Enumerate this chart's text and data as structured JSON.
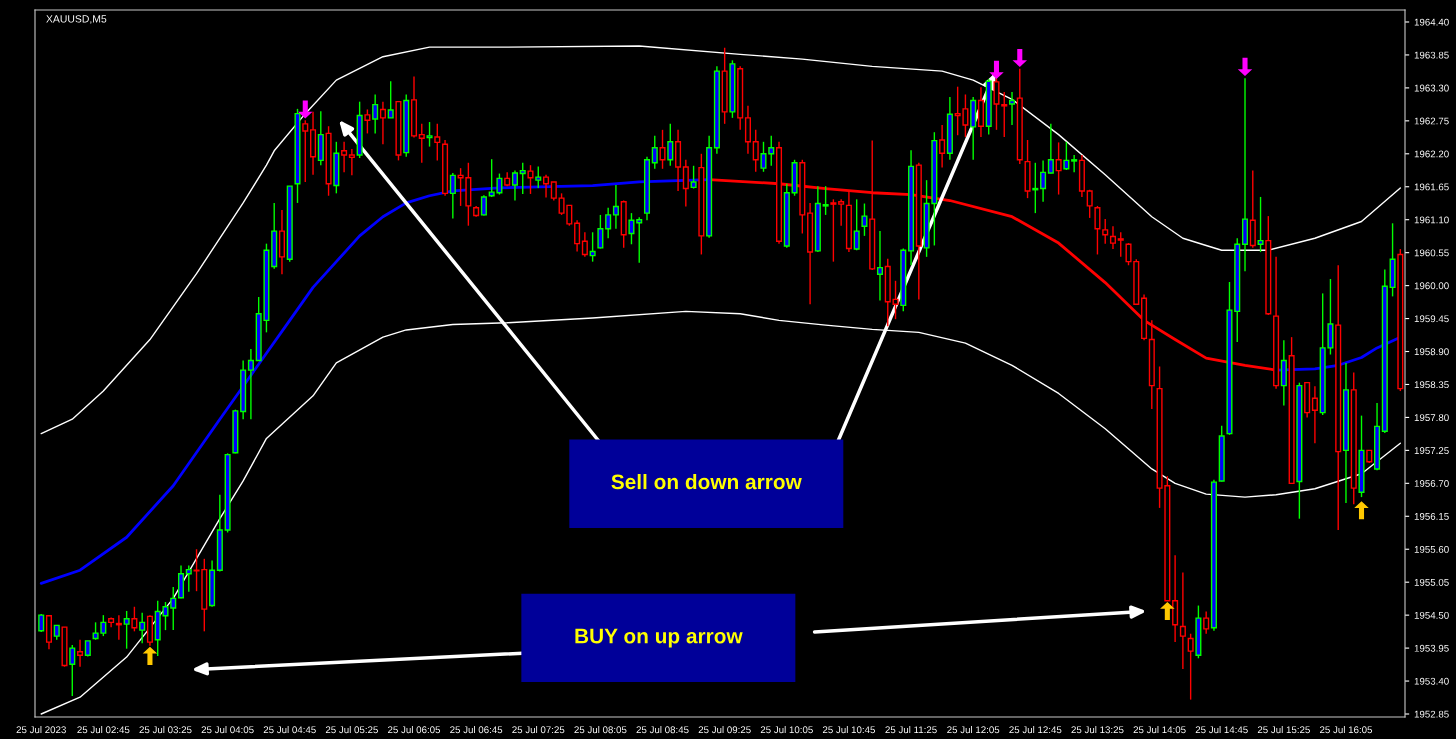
{
  "chart_data": {
    "type": "candlestick",
    "title": "XAUUSD,M5",
    "x": [
      "2023-07-25T02:05",
      "2023-07-25T02:10",
      "2023-07-25T02:15",
      "2023-07-25T02:20",
      "2023-07-25T02:25",
      "2023-07-25T02:30",
      "2023-07-25T02:35",
      "2023-07-25T02:40",
      "2023-07-25T02:45",
      "2023-07-25T02:50",
      "2023-07-25T02:55",
      "2023-07-25T03:00",
      "2023-07-25T03:05",
      "2023-07-25T03:10",
      "2023-07-25T03:15",
      "2023-07-25T03:20",
      "2023-07-25T03:25",
      "2023-07-25T03:30",
      "2023-07-25T03:35",
      "2023-07-25T03:40",
      "2023-07-25T03:45",
      "2023-07-25T03:50",
      "2023-07-25T03:55",
      "2023-07-25T04:00",
      "2023-07-25T04:05",
      "2023-07-25T04:10",
      "2023-07-25T04:15",
      "2023-07-25T04:20",
      "2023-07-25T04:25",
      "2023-07-25T04:30",
      "2023-07-25T04:35",
      "2023-07-25T04:40",
      "2023-07-25T04:45",
      "2023-07-25T04:50",
      "2023-07-25T04:55",
      "2023-07-25T05:00",
      "2023-07-25T05:05",
      "2023-07-25T05:10",
      "2023-07-25T05:15",
      "2023-07-25T05:20",
      "2023-07-25T05:25",
      "2023-07-25T05:30",
      "2023-07-25T05:35",
      "2023-07-25T05:40",
      "2023-07-25T05:45",
      "2023-07-25T05:50",
      "2023-07-25T05:55",
      "2023-07-25T06:00",
      "2023-07-25T06:05",
      "2023-07-25T06:10",
      "2023-07-25T06:15",
      "2023-07-25T06:20",
      "2023-07-25T06:25",
      "2023-07-25T06:30",
      "2023-07-25T06:35",
      "2023-07-25T06:40",
      "2023-07-25T06:45",
      "2023-07-25T06:50",
      "2023-07-25T06:55",
      "2023-07-25T07:00",
      "2023-07-25T07:05",
      "2023-07-25T07:10",
      "2023-07-25T07:15",
      "2023-07-25T07:20",
      "2023-07-25T07:25",
      "2023-07-25T07:30",
      "2023-07-25T07:35",
      "2023-07-25T07:40",
      "2023-07-25T07:45",
      "2023-07-25T07:50",
      "2023-07-25T07:55",
      "2023-07-25T08:00",
      "2023-07-25T08:05",
      "2023-07-25T08:10",
      "2023-07-25T08:15",
      "2023-07-25T08:20",
      "2023-07-25T08:25",
      "2023-07-25T08:30",
      "2023-07-25T08:35",
      "2023-07-25T08:40",
      "2023-07-25T08:45",
      "2023-07-25T08:50",
      "2023-07-25T08:55",
      "2023-07-25T09:00",
      "2023-07-25T09:05",
      "2023-07-25T09:10",
      "2023-07-25T09:15",
      "2023-07-25T09:20",
      "2023-07-25T09:25",
      "2023-07-25T09:30",
      "2023-07-25T09:35",
      "2023-07-25T09:40",
      "2023-07-25T09:45",
      "2023-07-25T09:50",
      "2023-07-25T09:55",
      "2023-07-25T10:00",
      "2023-07-25T10:05",
      "2023-07-25T10:10",
      "2023-07-25T10:15",
      "2023-07-25T10:20",
      "2023-07-25T10:25",
      "2023-07-25T10:30",
      "2023-07-25T10:35",
      "2023-07-25T10:40",
      "2023-07-25T10:45",
      "2023-07-25T10:50",
      "2023-07-25T10:55",
      "2023-07-25T11:00",
      "2023-07-25T11:05",
      "2023-07-25T11:10",
      "2023-07-25T11:15",
      "2023-07-25T11:20",
      "2023-07-25T11:25",
      "2023-07-25T11:30",
      "2023-07-25T11:35",
      "2023-07-25T11:40",
      "2023-07-25T11:45",
      "2023-07-25T11:50",
      "2023-07-25T11:55",
      "2023-07-25T12:00",
      "2023-07-25T12:05",
      "2023-07-25T12:10",
      "2023-07-25T12:15",
      "2023-07-25T12:20",
      "2023-07-25T12:25",
      "2023-07-25T12:30",
      "2023-07-25T12:35",
      "2023-07-25T12:40",
      "2023-07-25T12:45",
      "2023-07-25T12:50",
      "2023-07-25T12:55",
      "2023-07-25T13:00",
      "2023-07-25T13:05",
      "2023-07-25T13:10",
      "2023-07-25T13:15",
      "2023-07-25T13:20",
      "2023-07-25T13:25",
      "2023-07-25T13:30",
      "2023-07-25T13:35",
      "2023-07-25T13:40",
      "2023-07-25T13:45",
      "2023-07-25T13:50",
      "2023-07-25T13:55",
      "2023-07-25T14:00",
      "2023-07-25T14:05",
      "2023-07-25T14:10",
      "2023-07-25T14:15",
      "2023-07-25T14:20",
      "2023-07-25T14:25",
      "2023-07-25T14:30",
      "2023-07-25T14:35",
      "2023-07-25T14:40",
      "2023-07-25T14:45",
      "2023-07-25T14:50",
      "2023-07-25T14:55",
      "2023-07-25T15:00",
      "2023-07-25T15:05",
      "2023-07-25T15:10",
      "2023-07-25T15:15",
      "2023-07-25T15:20",
      "2023-07-25T15:25",
      "2023-07-25T15:30",
      "2023-07-25T15:35",
      "2023-07-25T15:40",
      "2023-07-25T15:45",
      "2023-07-25T15:50",
      "2023-07-25T15:55",
      "2023-07-25T16:00",
      "2023-07-25T16:05",
      "2023-07-25T16:10",
      "2023-07-25T16:15",
      "2023-07-25T16:20",
      "2023-07-25T16:25",
      "2023-07-25T16:30",
      "2023-07-25T16:35",
      "2023-07-25T16:40"
    ],
    "ohlc": [
      [
        1954.24,
        1954.52,
        1954.22,
        1954.5
      ],
      [
        1954.49,
        1954.5,
        1953.93,
        1954.05
      ],
      [
        1954.15,
        1954.33,
        1954.09,
        1954.33
      ],
      [
        1954.3,
        1954.3,
        1953.64,
        1953.66
      ],
      [
        1953.68,
        1954.0,
        1953.15,
        1953.95
      ],
      [
        1953.89,
        1954.09,
        1953.64,
        1953.83
      ],
      [
        1953.83,
        1954.07,
        1953.81,
        1954.07
      ],
      [
        1954.11,
        1954.38,
        1954.09,
        1954.2
      ],
      [
        1954.2,
        1954.5,
        1954.15,
        1954.38
      ],
      [
        1954.44,
        1954.46,
        1954.3,
        1954.38
      ],
      [
        1954.36,
        1954.5,
        1954.09,
        1954.34
      ],
      [
        1954.35,
        1954.57,
        1953.94,
        1954.44
      ],
      [
        1954.44,
        1954.64,
        1954.23,
        1954.29
      ],
      [
        1954.25,
        1954.54,
        1954.03,
        1954.38
      ],
      [
        1954.48,
        1954.5,
        1953.99,
        1954.05
      ],
      [
        1954.09,
        1954.74,
        1953.82,
        1954.56
      ],
      [
        1954.49,
        1954.72,
        1954.25,
        1954.64
      ],
      [
        1954.62,
        1954.97,
        1954.25,
        1954.78
      ],
      [
        1954.79,
        1955.33,
        1954.78,
        1955.19
      ],
      [
        1955.19,
        1955.33,
        1954.89,
        1955.26
      ],
      [
        1955.25,
        1955.6,
        1954.9,
        1955.24
      ],
      [
        1955.26,
        1955.44,
        1954.23,
        1954.6
      ],
      [
        1954.66,
        1955.41,
        1954.64,
        1955.25
      ],
      [
        1955.25,
        1956.51,
        1955.23,
        1955.92
      ],
      [
        1955.92,
        1957.2,
        1955.88,
        1957.18
      ],
      [
        1957.21,
        1957.93,
        1957.2,
        1957.91
      ],
      [
        1957.9,
        1958.75,
        1957.77,
        1958.59
      ],
      [
        1958.59,
        1958.94,
        1957.77,
        1958.75
      ],
      [
        1958.75,
        1959.81,
        1958.75,
        1959.53
      ],
      [
        1959.42,
        1960.7,
        1959.22,
        1960.59
      ],
      [
        1960.32,
        1961.38,
        1960.28,
        1960.91
      ],
      [
        1960.91,
        1961.26,
        1960.19,
        1960.48
      ],
      [
        1960.44,
        1961.66,
        1960.4,
        1961.66
      ],
      [
        1961.7,
        1962.95,
        1961.38,
        1962.87
      ],
      [
        1962.7,
        1962.76,
        1961.73,
        1962.58
      ],
      [
        1962.6,
        1962.9,
        1961.85,
        1962.15
      ],
      [
        1962.09,
        1962.91,
        1962.01,
        1962.52
      ],
      [
        1962.54,
        1962.66,
        1961.5,
        1961.7
      ],
      [
        1961.67,
        1962.4,
        1961.54,
        1962.21
      ],
      [
        1962.25,
        1962.4,
        1961.89,
        1962.18
      ],
      [
        1962.18,
        1962.28,
        1961.84,
        1962.14
      ],
      [
        1962.18,
        1963.07,
        1962.13,
        1962.84
      ],
      [
        1962.85,
        1962.94,
        1962.54,
        1962.76
      ],
      [
        1962.78,
        1963.19,
        1962.54,
        1963.02
      ],
      [
        1962.94,
        1963.07,
        1962.36,
        1962.8
      ],
      [
        1962.8,
        1963.41,
        1962.8,
        1962.93
      ],
      [
        1963.07,
        1963.07,
        1962.09,
        1962.18
      ],
      [
        1962.22,
        1963.19,
        1962.15,
        1963.09
      ],
      [
        1963.1,
        1963.49,
        1962.47,
        1962.5
      ],
      [
        1962.52,
        1962.7,
        1962.05,
        1962.46
      ],
      [
        1962.47,
        1962.73,
        1962.32,
        1962.5
      ],
      [
        1962.48,
        1962.7,
        1962.09,
        1962.39
      ],
      [
        1962.36,
        1962.43,
        1961.5,
        1961.54
      ],
      [
        1961.54,
        1961.88,
        1961.12,
        1961.84
      ],
      [
        1961.84,
        1961.96,
        1961.33,
        1961.8
      ],
      [
        1961.8,
        1962.05,
        1961.0,
        1961.33
      ],
      [
        1961.3,
        1961.33,
        1961.15,
        1961.17
      ],
      [
        1961.18,
        1961.51,
        1961.17,
        1961.48
      ],
      [
        1961.5,
        1962.11,
        1961.48,
        1961.56
      ],
      [
        1961.55,
        1961.87,
        1961.52,
        1961.79
      ],
      [
        1961.79,
        1961.89,
        1961.66,
        1961.68
      ],
      [
        1961.68,
        1961.92,
        1961.42,
        1961.88
      ],
      [
        1961.87,
        1962.05,
        1961.53,
        1961.92
      ],
      [
        1961.91,
        1962.01,
        1961.53,
        1961.8
      ],
      [
        1961.76,
        1961.99,
        1961.63,
        1961.81
      ],
      [
        1961.81,
        1961.85,
        1961.47,
        1961.7
      ],
      [
        1961.73,
        1961.73,
        1961.42,
        1961.46
      ],
      [
        1961.46,
        1961.54,
        1961.18,
        1961.21
      ],
      [
        1961.34,
        1961.34,
        1961.0,
        1961.03
      ],
      [
        1961.04,
        1961.09,
        1960.57,
        1960.7
      ],
      [
        1960.74,
        1960.89,
        1960.48,
        1960.52
      ],
      [
        1960.5,
        1960.89,
        1960.4,
        1960.57
      ],
      [
        1960.63,
        1961.18,
        1960.62,
        1960.95
      ],
      [
        1960.95,
        1961.3,
        1960.79,
        1961.18
      ],
      [
        1961.18,
        1961.68,
        1960.95,
        1961.32
      ],
      [
        1961.4,
        1961.42,
        1960.63,
        1960.85
      ],
      [
        1960.87,
        1961.21,
        1960.69,
        1961.09
      ],
      [
        1961.05,
        1961.14,
        1960.38,
        1961.1
      ],
      [
        1961.21,
        1962.15,
        1961.09,
        1962.1
      ],
      [
        1962.05,
        1962.5,
        1961.95,
        1962.3
      ],
      [
        1962.3,
        1962.6,
        1961.95,
        1962.1
      ],
      [
        1962.1,
        1962.7,
        1962.0,
        1962.4
      ],
      [
        1962.4,
        1962.6,
        1961.58,
        1961.98
      ],
      [
        1961.98,
        1962.1,
        1961.32,
        1961.62
      ],
      [
        1961.64,
        1962.0,
        1961.62,
        1961.73
      ],
      [
        1961.97,
        1962.2,
        1960.52,
        1960.83
      ],
      [
        1960.83,
        1962.5,
        1960.8,
        1962.3
      ],
      [
        1962.3,
        1963.66,
        1962.2,
        1963.58
      ],
      [
        1963.58,
        1963.97,
        1962.7,
        1962.9
      ],
      [
        1962.9,
        1963.76,
        1962.8,
        1963.7
      ],
      [
        1963.62,
        1963.66,
        1962.6,
        1962.8
      ],
      [
        1962.8,
        1963.0,
        1962.2,
        1962.4
      ],
      [
        1962.4,
        1962.6,
        1961.9,
        1962.1
      ],
      [
        1961.96,
        1962.4,
        1961.9,
        1962.2
      ],
      [
        1962.2,
        1962.5,
        1962.0,
        1962.3
      ],
      [
        1962.3,
        1962.4,
        1960.7,
        1960.74
      ],
      [
        1960.66,
        1961.7,
        1960.63,
        1961.55
      ],
      [
        1961.55,
        1962.1,
        1961.5,
        1962.05
      ],
      [
        1962.05,
        1962.1,
        1960.87,
        1961.18
      ],
      [
        1961.21,
        1961.38,
        1959.69,
        1960.56
      ],
      [
        1960.58,
        1961.66,
        1960.56,
        1961.37
      ],
      [
        1961.33,
        1961.66,
        1961.18,
        1961.35
      ],
      [
        1961.38,
        1961.44,
        1960.4,
        1961.36
      ],
      [
        1961.4,
        1961.44,
        1961.0,
        1961.36
      ],
      [
        1961.34,
        1961.58,
        1960.56,
        1960.62
      ],
      [
        1960.61,
        1961.44,
        1960.59,
        1960.91
      ],
      [
        1960.99,
        1961.37,
        1960.83,
        1961.16
      ],
      [
        1961.11,
        1962.42,
        1960.26,
        1960.28
      ],
      [
        1960.19,
        1960.91,
        1959.75,
        1960.3
      ],
      [
        1960.32,
        1960.45,
        1959.32,
        1959.73
      ],
      [
        1959.77,
        1960.08,
        1959.44,
        1959.69
      ],
      [
        1959.67,
        1960.62,
        1959.57,
        1960.59
      ],
      [
        1960.58,
        1962.26,
        1960.34,
        1961.99
      ],
      [
        1962.01,
        1962.05,
        1959.77,
        1960.66
      ],
      [
        1960.63,
        1961.76,
        1960.48,
        1961.37
      ],
      [
        1961.37,
        1962.56,
        1960.67,
        1962.42
      ],
      [
        1962.43,
        1962.68,
        1961.97,
        1962.21
      ],
      [
        1962.21,
        1963.15,
        1962.1,
        1962.86
      ],
      [
        1962.87,
        1963.32,
        1962.51,
        1962.84
      ],
      [
        1962.95,
        1963.19,
        1962.48,
        1962.68
      ],
      [
        1962.65,
        1963.15,
        1962.1,
        1963.09
      ],
      [
        1963.09,
        1963.31,
        1962.48,
        1962.66
      ],
      [
        1962.66,
        1963.45,
        1962.52,
        1963.41
      ],
      [
        1963.4,
        1963.46,
        1962.6,
        1963.03
      ],
      [
        1963.02,
        1963.23,
        1962.48,
        1963.0
      ],
      [
        1963.03,
        1963.23,
        1962.68,
        1963.09
      ],
      [
        1963.13,
        1963.62,
        1962.03,
        1962.1
      ],
      [
        1962.07,
        1962.43,
        1961.46,
        1961.58
      ],
      [
        1961.6,
        1962.05,
        1961.21,
        1961.62
      ],
      [
        1961.62,
        1962.09,
        1961.4,
        1961.89
      ],
      [
        1961.88,
        1962.7,
        1961.87,
        1962.1
      ],
      [
        1962.1,
        1962.39,
        1961.52,
        1961.92
      ],
      [
        1961.95,
        1962.4,
        1961.93,
        1962.09
      ],
      [
        1962.08,
        1962.18,
        1961.89,
        1962.1
      ],
      [
        1962.09,
        1962.18,
        1961.48,
        1961.58
      ],
      [
        1961.58,
        1961.6,
        1961.13,
        1961.33
      ],
      [
        1961.3,
        1961.33,
        1960.52,
        1960.95
      ],
      [
        1960.93,
        1961.11,
        1960.7,
        1960.85
      ],
      [
        1960.82,
        1960.99,
        1960.61,
        1960.71
      ],
      [
        1960.78,
        1960.89,
        1960.48,
        1960.76
      ],
      [
        1960.69,
        1960.71,
        1960.34,
        1960.4
      ],
      [
        1960.4,
        1960.44,
        1959.69,
        1959.69
      ],
      [
        1959.79,
        1959.85,
        1959.09,
        1959.12
      ],
      [
        1959.1,
        1959.42,
        1957.94,
        1958.33
      ],
      [
        1958.28,
        1958.65,
        1956.29,
        1956.62
      ],
      [
        1956.66,
        1956.82,
        1954.74,
        1954.74
      ],
      [
        1954.74,
        1955.5,
        1954.05,
        1954.34
      ],
      [
        1954.31,
        1955.21,
        1953.6,
        1954.15
      ],
      [
        1954.11,
        1954.19,
        1953.09,
        1953.9
      ],
      [
        1953.83,
        1954.66,
        1953.78,
        1954.45
      ],
      [
        1954.45,
        1954.56,
        1954.19,
        1954.27
      ],
      [
        1954.29,
        1956.76,
        1954.24,
        1956.72
      ],
      [
        1956.74,
        1957.66,
        1956.73,
        1957.49
      ],
      [
        1957.53,
        1960.06,
        1957.51,
        1959.59
      ],
      [
        1959.57,
        1960.79,
        1959.06,
        1960.69
      ],
      [
        1960.69,
        1963.46,
        1960.24,
        1961.11
      ],
      [
        1961.09,
        1961.92,
        1960.63,
        1960.67
      ],
      [
        1960.69,
        1961.48,
        1960.56,
        1960.75
      ],
      [
        1960.75,
        1961.16,
        1959.51,
        1959.53
      ],
      [
        1959.49,
        1960.48,
        1958.28,
        1958.33
      ],
      [
        1958.33,
        1959.09,
        1958.0,
        1958.75
      ],
      [
        1958.83,
        1959.14,
        1956.7,
        1956.7
      ],
      [
        1956.73,
        1958.38,
        1956.11,
        1958.33
      ],
      [
        1958.38,
        1958.38,
        1957.8,
        1957.88
      ],
      [
        1958.12,
        1958.32,
        1957.37,
        1957.92
      ],
      [
        1957.88,
        1959.87,
        1957.84,
        1958.96
      ],
      [
        1958.96,
        1960.11,
        1958.85,
        1959.36
      ],
      [
        1959.34,
        1960.34,
        1955.92,
        1957.23
      ],
      [
        1957.25,
        1958.71,
        1956.37,
        1958.26
      ],
      [
        1958.26,
        1958.55,
        1956.35,
        1956.62
      ],
      [
        1956.55,
        1957.83,
        1956.47,
        1957.25
      ],
      [
        1957.25,
        1957.25,
        1957.04,
        1957.06
      ],
      [
        1956.94,
        1958.04,
        1956.92,
        1957.65
      ],
      [
        1957.57,
        1960.27,
        1957.54,
        1959.99
      ],
      [
        1959.97,
        1961.04,
        1959.82,
        1960.44
      ],
      [
        1960.52,
        1960.61,
        1958.24,
        1958.28
      ]
    ],
    "series": [
      {
        "type": "line",
        "color": "#ffffff",
        "x": [
          "2023-07-25T02:05",
          "2023-07-25T02:25",
          "2023-07-25T02:45",
          "2023-07-25T03:15",
          "2023-07-25T03:45",
          "2023-07-25T04:15",
          "2023-07-25T04:30",
          "2023-07-25T04:35",
          "2023-07-25T04:55",
          "2023-07-25T05:15",
          "2023-07-25T05:45",
          "2023-07-25T06:15",
          "2023-07-25T07:05",
          "2023-07-25T08:30",
          "2023-07-25T09:35",
          "2023-07-25T10:15",
          "2023-07-25T11:00",
          "2023-07-25T11:45",
          "2023-07-25T12:05",
          "2023-07-25T12:30",
          "2023-07-25T13:00",
          "2023-07-25T13:30",
          "2023-07-25T14:00",
          "2023-07-25T14:20",
          "2023-07-25T14:35",
          "2023-07-25T14:45",
          "2023-07-25T15:15",
          "2023-07-25T15:45",
          "2023-07-25T16:15",
          "2023-07-25T16:40"
        ],
        "values": [
          1957.53,
          1957.77,
          1958.24,
          1959.1,
          1960.2,
          1961.38,
          1962.01,
          1962.25,
          1962.87,
          1963.43,
          1963.82,
          1963.98,
          1963.98,
          1964.0,
          1963.86,
          1963.78,
          1963.66,
          1963.58,
          1963.43,
          1963.11,
          1962.52,
          1961.85,
          1961.15,
          1960.79,
          1960.67,
          1960.59,
          1960.59,
          1960.79,
          1961.07,
          1961.63
        ]
      },
      {
        "type": "line",
        "color": "#ffffff",
        "x": [
          "2023-07-25T02:05",
          "2023-07-25T02:30",
          "2023-07-25T03:00",
          "2023-07-25T03:30",
          "2023-07-25T04:00",
          "2023-07-25T04:15",
          "2023-07-25T04:30",
          "2023-07-25T05:00",
          "2023-07-25T05:15",
          "2023-07-25T05:45",
          "2023-07-25T06:00",
          "2023-07-25T06:30",
          "2023-07-25T07:05",
          "2023-07-25T08:00",
          "2023-07-25T09:00",
          "2023-07-25T09:35",
          "2023-07-25T10:00",
          "2023-07-25T10:30",
          "2023-07-25T11:00",
          "2023-07-25T11:30",
          "2023-07-25T12:00",
          "2023-07-25T12:30",
          "2023-07-25T13:00",
          "2023-07-25T13:30",
          "2023-07-25T14:00",
          "2023-07-25T14:15",
          "2023-07-25T14:35",
          "2023-07-25T15:00",
          "2023-07-25T15:20",
          "2023-07-25T15:45",
          "2023-07-25T16:15",
          "2023-07-25T16:40"
        ],
        "values": [
          1952.85,
          1953.13,
          1953.8,
          1954.78,
          1956.11,
          1956.74,
          1957.45,
          1958.16,
          1958.71,
          1959.14,
          1959.26,
          1959.35,
          1959.38,
          1959.46,
          1959.57,
          1959.53,
          1959.42,
          1959.34,
          1959.27,
          1959.22,
          1959.04,
          1958.67,
          1958.2,
          1957.61,
          1956.94,
          1956.7,
          1956.52,
          1956.47,
          1956.51,
          1956.61,
          1956.86,
          1957.37
        ]
      },
      {
        "type": "line",
        "color": "#0000ff",
        "x": [
          "2023-07-25T02:05",
          "2023-07-25T02:30",
          "2023-07-25T03:00",
          "2023-07-25T03:30",
          "2023-07-25T04:00",
          "2023-07-25T04:30",
          "2023-07-25T04:45",
          "2023-07-25T05:00",
          "2023-07-25T05:15",
          "2023-07-25T05:30",
          "2023-07-25T05:45",
          "2023-07-25T06:00",
          "2023-07-25T06:15",
          "2023-07-25T06:30",
          "2023-07-25T07:00",
          "2023-07-25T08:00",
          "2023-07-25T08:30",
          "2023-07-25T09:15"
        ],
        "values": [
          1955.03,
          1955.25,
          1955.8,
          1956.66,
          1957.77,
          1958.87,
          1959.42,
          1959.97,
          1960.4,
          1960.83,
          1961.15,
          1961.38,
          1961.5,
          1961.58,
          1961.63,
          1961.67,
          1961.73,
          1961.77
        ]
      },
      {
        "type": "line",
        "color": "#ff0000",
        "x": [
          "2023-07-25T09:15",
          "2023-07-25T10:00",
          "2023-07-25T10:30",
          "2023-07-25T11:00",
          "2023-07-25T11:25",
          "2023-07-25T11:50",
          "2023-07-25T12:30",
          "2023-07-25T13:00",
          "2023-07-25T13:30",
          "2023-07-25T13:55",
          "2023-07-25T14:15",
          "2023-07-25T14:35",
          "2023-07-25T15:00",
          "2023-07-25T15:20"
        ],
        "values": [
          1961.77,
          1961.7,
          1961.62,
          1961.55,
          1961.52,
          1961.42,
          1961.15,
          1960.71,
          1960.05,
          1959.42,
          1959.1,
          1958.79,
          1958.67,
          1958.59
        ]
      },
      {
        "type": "line",
        "color": "#0000ff",
        "x": [
          "2023-07-25T15:20",
          "2023-07-25T15:45",
          "2023-07-25T16:00",
          "2023-07-25T16:15",
          "2023-07-25T16:25",
          "2023-07-25T16:40"
        ],
        "values": [
          1958.59,
          1958.61,
          1958.67,
          1958.8,
          1958.96,
          1959.14
        ]
      },
      {
        "type": "scatter",
        "color": "#ff00ff",
        "x": [
          "2023-07-25T04:55",
          "2023-07-25T12:20",
          "2023-07-25T12:35",
          "2023-07-25T15:00"
        ],
        "values": [
          1962.94,
          1963.6,
          1963.8,
          1963.65
        ]
      },
      {
        "type": "scatter",
        "color": "#ffc800",
        "x": [
          "2023-07-25T03:15",
          "2023-07-25T14:10",
          "2023-07-25T16:15"
        ],
        "values": [
          1953.82,
          1954.57,
          1956.25
        ]
      }
    ],
    "annotations": [
      "Sell on down arrow",
      "BUY on up arrow"
    ],
    "xlim": [
      "2023-07-25T02:01",
      "2023-07-25T16:43"
    ],
    "xticks": [
      {
        "value": "2023-07-25T02:05",
        "label": "25 Jul 2023"
      },
      {
        "value": "2023-07-25T02:45",
        "label": "25 Jul 02:45"
      },
      {
        "value": "2023-07-25T03:25",
        "label": "25 Jul 03:25"
      },
      {
        "value": "2023-07-25T04:05",
        "label": "25 Jul 04:05"
      },
      {
        "value": "2023-07-25T04:45",
        "label": "25 Jul 04:45"
      },
      {
        "value": "2023-07-25T05:25",
        "label": "25 Jul 05:25"
      },
      {
        "value": "2023-07-25T06:05",
        "label": "25 Jul 06:05"
      },
      {
        "value": "2023-07-25T06:45",
        "label": "25 Jul 06:45"
      },
      {
        "value": "2023-07-25T07:25",
        "label": "25 Jul 07:25"
      },
      {
        "value": "2023-07-25T08:05",
        "label": "25 Jul 08:05"
      },
      {
        "value": "2023-07-25T08:45",
        "label": "25 Jul 08:45"
      },
      {
        "value": "2023-07-25T09:25",
        "label": "25 Jul 09:25"
      },
      {
        "value": "2023-07-25T10:05",
        "label": "25 Jul 10:05"
      },
      {
        "value": "2023-07-25T10:45",
        "label": "25 Jul 10:45"
      },
      {
        "value": "2023-07-25T11:25",
        "label": "25 Jul 11:25"
      },
      {
        "value": "2023-07-25T12:05",
        "label": "25 Jul 12:05"
      },
      {
        "value": "2023-07-25T12:45",
        "label": "25 Jul 12:45"
      },
      {
        "value": "2023-07-25T13:25",
        "label": "25 Jul 13:25"
      },
      {
        "value": "2023-07-25T14:05",
        "label": "25 Jul 14:05"
      },
      {
        "value": "2023-07-25T14:45",
        "label": "25 Jul 14:45"
      },
      {
        "value": "2023-07-25T15:25",
        "label": "25 Jul 15:25"
      },
      {
        "value": "2023-07-25T16:05",
        "label": "25 Jul 16:05"
      }
    ],
    "ylim": [
      1952.8,
      1964.6
    ],
    "yticks": [
      {
        "value": 1952.85,
        "label": "1952.85"
      },
      {
        "value": 1953.4,
        "label": "1953.40"
      },
      {
        "value": 1953.95,
        "label": "1953.95"
      },
      {
        "value": 1954.5,
        "label": "1954.50"
      },
      {
        "value": 1955.05,
        "label": "1955.05"
      },
      {
        "value": 1955.6,
        "label": "1955.60"
      },
      {
        "value": 1956.15,
        "label": "1956.15"
      },
      {
        "value": 1956.7,
        "label": "1956.70"
      },
      {
        "value": 1957.25,
        "label": "1957.25"
      },
      {
        "value": 1957.8,
        "label": "1957.80"
      },
      {
        "value": 1958.35,
        "label": "1958.35"
      },
      {
        "value": 1958.9,
        "label": "1958.90"
      },
      {
        "value": 1959.45,
        "label": "1959.45"
      },
      {
        "value": 1960.0,
        "label": "1960.00"
      },
      {
        "value": 1960.55,
        "label": "1960.55"
      },
      {
        "value": 1961.1,
        "label": "1961.10"
      },
      {
        "value": 1961.65,
        "label": "1961.65"
      },
      {
        "value": 1962.2,
        "label": "1962.20"
      },
      {
        "value": 1962.75,
        "label": "1962.75"
      },
      {
        "value": 1963.3,
        "label": "1963.30"
      },
      {
        "value": 1963.85,
        "label": "1963.85"
      },
      {
        "value": 1964.4,
        "label": "1964.40"
      }
    ],
    "grid": false
  }
}
